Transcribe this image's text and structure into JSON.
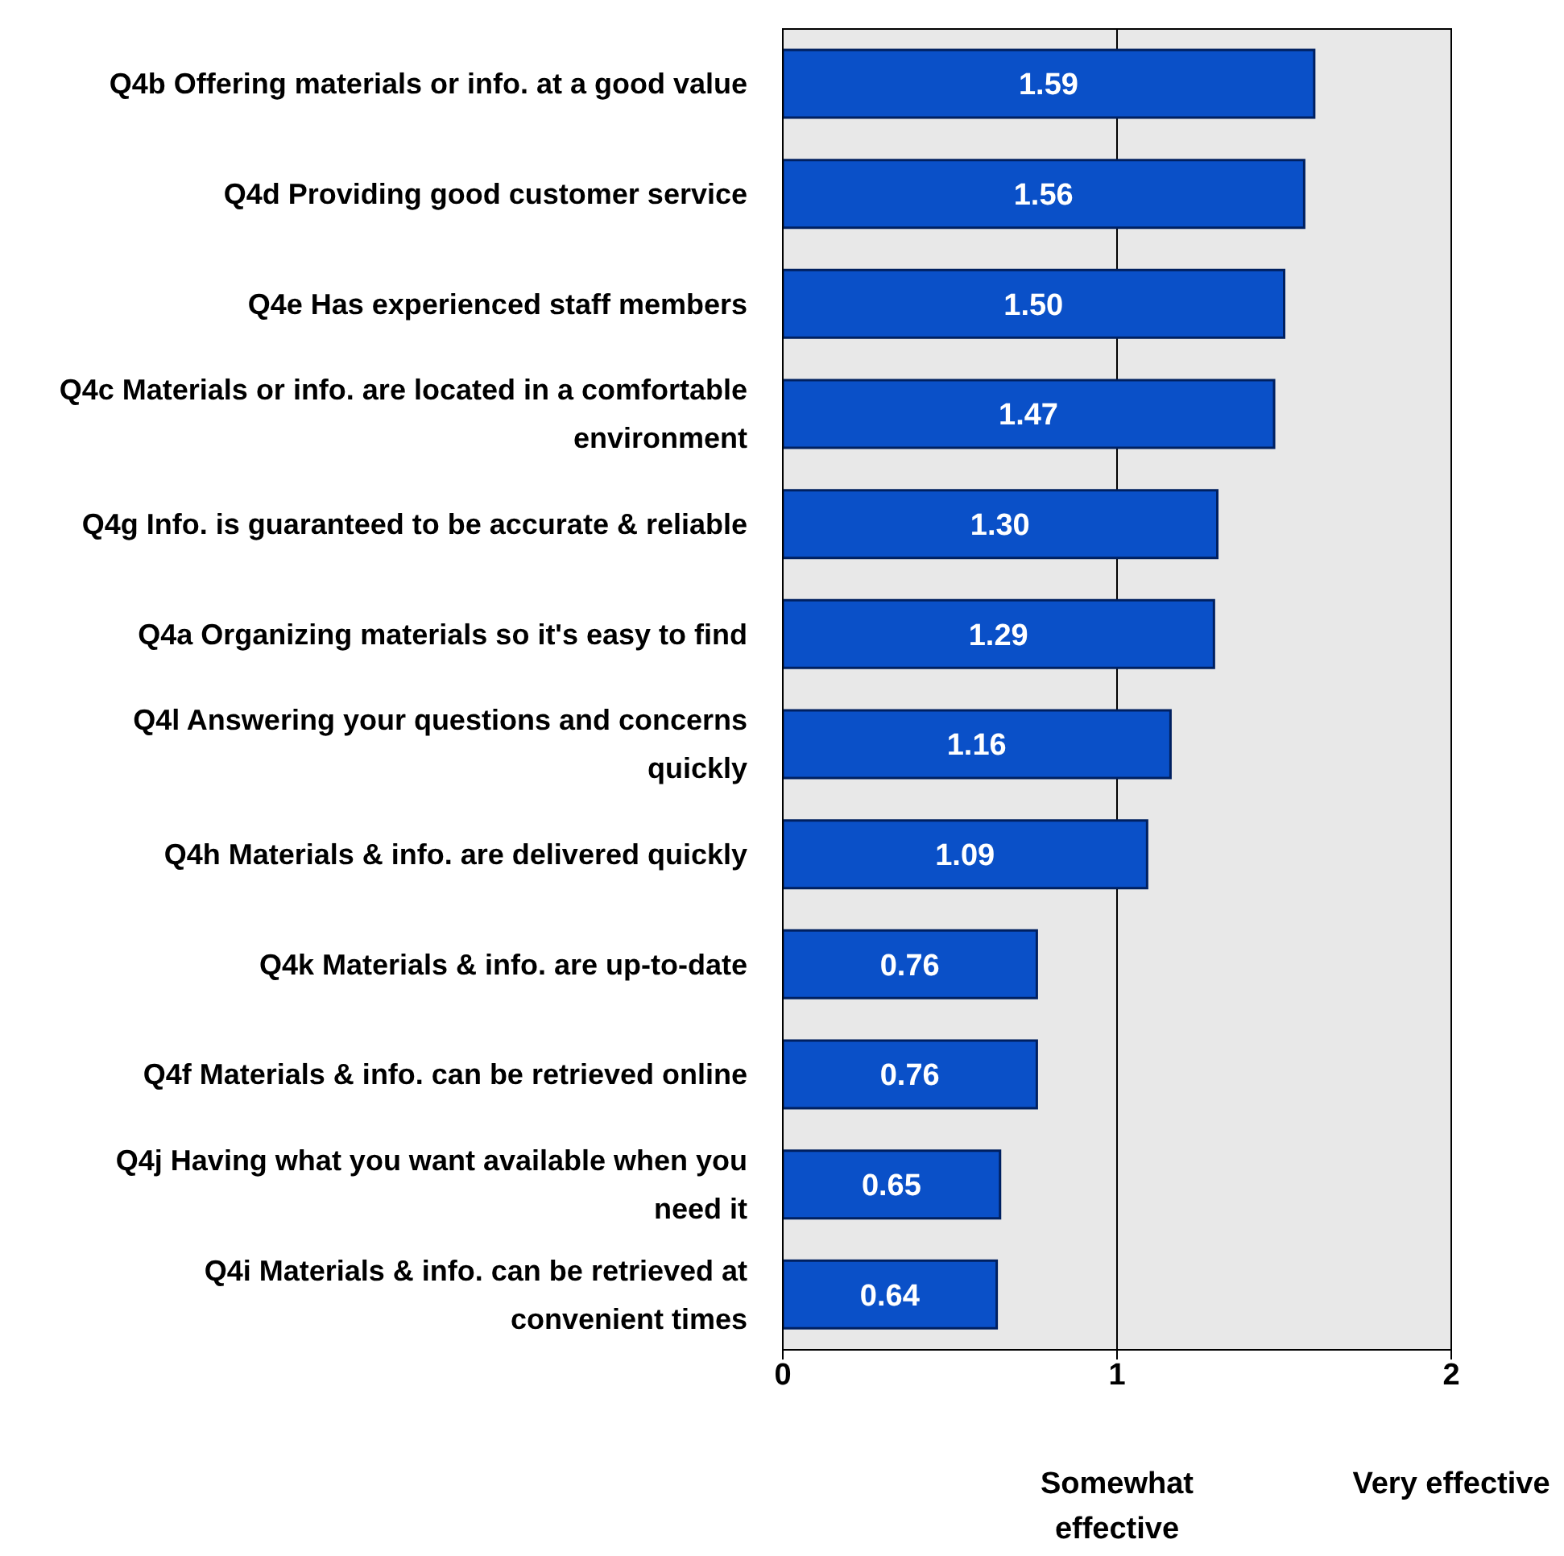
{
  "chart_data": {
    "type": "bar",
    "orientation": "horizontal",
    "categories": [
      "Q4b Offering materials or info. at a good value",
      "Q4d Providing good customer service",
      "Q4e Has experienced staff members",
      "Q4c Materials or info. are located in a comfortable environment",
      "Q4g Info. is guaranteed to be accurate & reliable",
      "Q4a Organizing materials so it's easy to find",
      "Q4l Answering your questions and concerns quickly",
      "Q4h Materials & info. are delivered quickly",
      "Q4k Materials & info. are up-to-date",
      "Q4f Materials & info. can be retrieved online",
      "Q4j Having what you want available when you need it",
      "Q4i Materials & info. can be retrieved at convenient times"
    ],
    "values": [
      1.59,
      1.56,
      1.5,
      1.47,
      1.3,
      1.29,
      1.16,
      1.09,
      0.76,
      0.76,
      0.65,
      0.64
    ],
    "value_labels": [
      "1.59",
      "1.56",
      "1.50",
      "1.47",
      "1.30",
      "1.29",
      "1.16",
      "1.09",
      "0.76",
      "0.76",
      "0.65",
      "0.64"
    ],
    "color": "#0a50c8",
    "xlim": [
      0,
      2
    ],
    "xticks": [
      0,
      1,
      2
    ],
    "grid": "x",
    "annotations": [
      "Somewhat effective",
      "Very effective"
    ]
  }
}
